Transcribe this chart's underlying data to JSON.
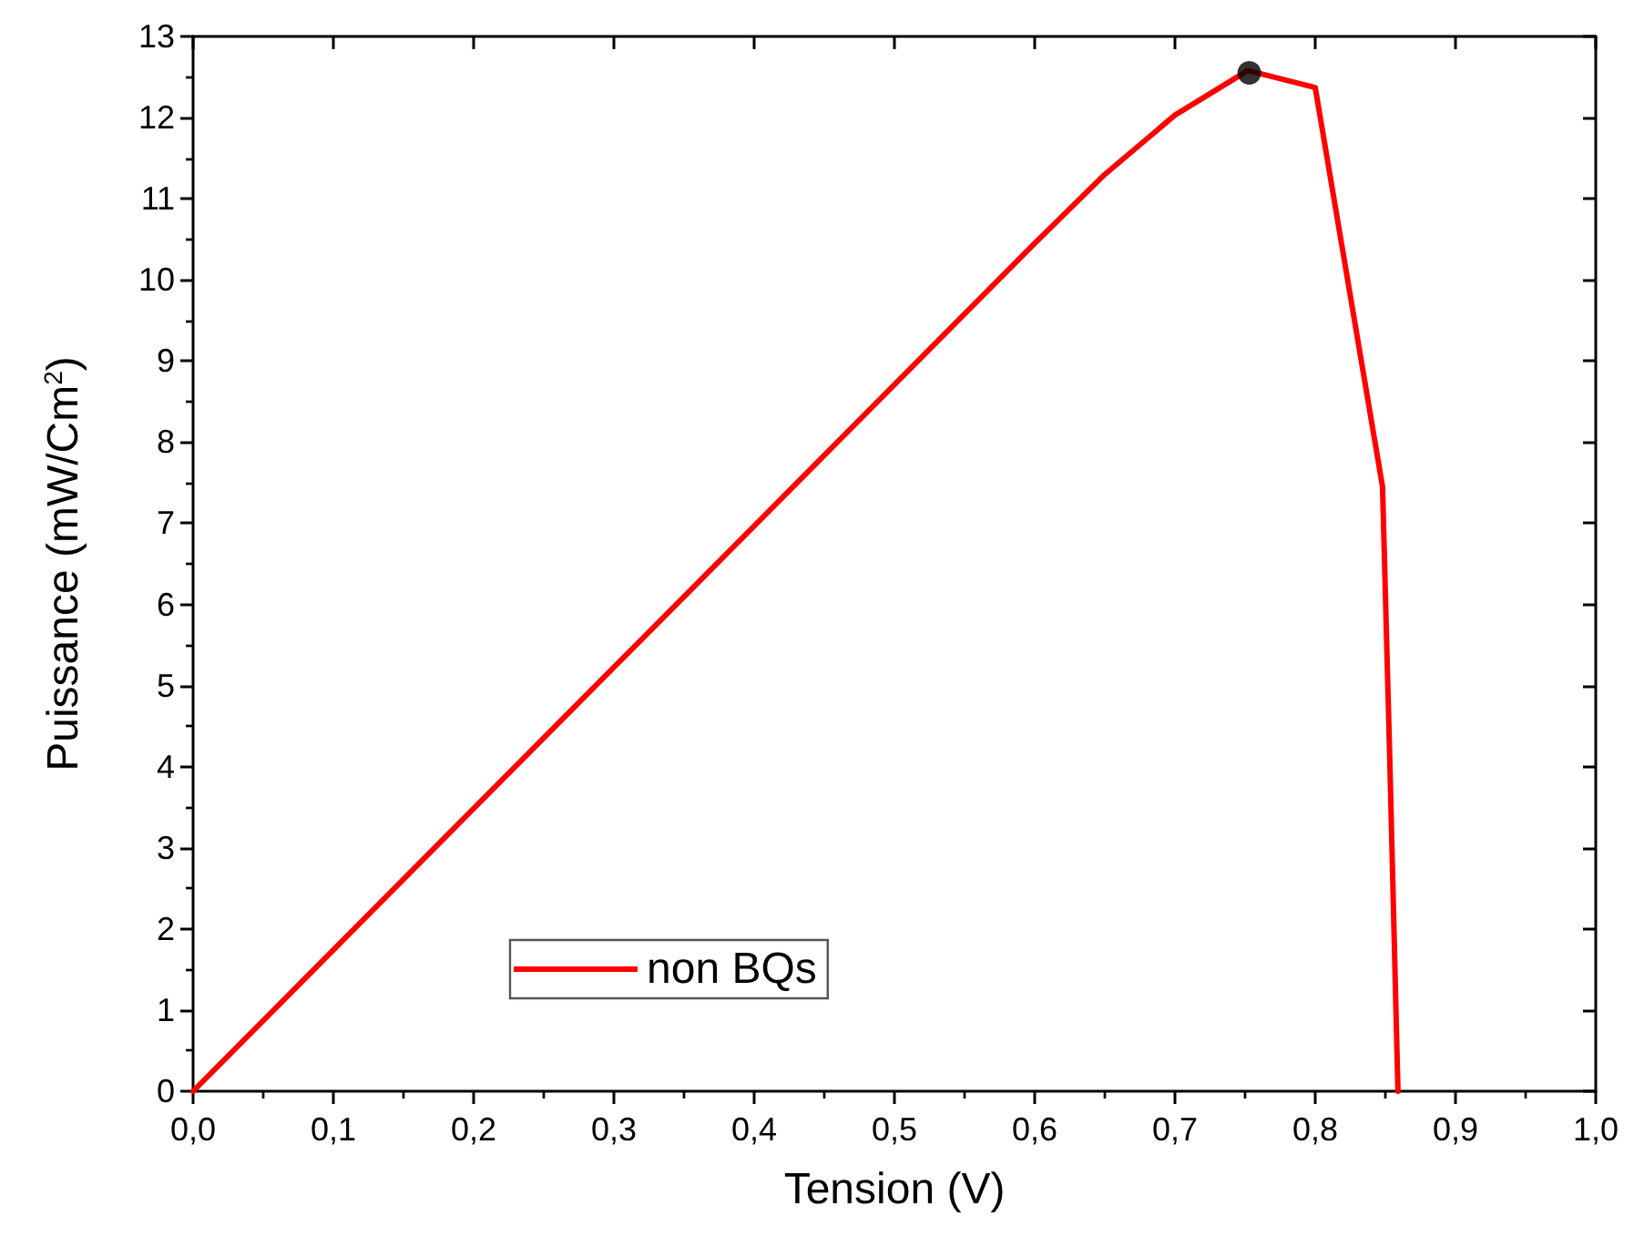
{
  "chart_data": {
    "type": "line",
    "xlabel": "Tension (V)",
    "ylabel": "Puissance (mW/Cm$^{2}$)",
    "xlim": [
      0,
      1
    ],
    "ylim": [
      0,
      13
    ],
    "xticks": [
      {
        "value": 0,
        "label": "0,0"
      },
      {
        "value": 0.1,
        "label": "0,1"
      },
      {
        "value": 0.2,
        "label": "0,2"
      },
      {
        "value": 0.3,
        "label": "0,3"
      },
      {
        "value": 0.4,
        "label": "0,4"
      },
      {
        "value": 0.5,
        "label": "0,5"
      },
      {
        "value": 0.6,
        "label": "0,6"
      },
      {
        "value": 0.7,
        "label": "0,7"
      },
      {
        "value": 0.8,
        "label": "0,8"
      },
      {
        "value": 0.9,
        "label": "0,9"
      },
      {
        "value": 1,
        "label": "1,0"
      }
    ],
    "yticks": [
      0,
      1,
      2,
      3,
      4,
      5,
      6,
      7,
      8,
      9,
      10,
      11,
      12,
      13
    ],
    "grid": false,
    "legend": "bottom left",
    "marker": "none",
    "line_style": "solid",
    "series": [
      {
        "name": "non BQs",
        "color": "#ff0000",
        "x": [
          0,
          0.6,
          0.65,
          0.7,
          0.752,
          0.8,
          0.848,
          0.853,
          0.859
        ],
        "values": [
          0,
          10.45,
          11.3,
          12.03,
          12.58,
          12.37,
          7.45,
          4.2,
          0
        ]
      },
      {
        "type": "scatter",
        "marker": "circle",
        "color": "#000000",
        "x": [
          0.753
        ],
        "values": [
          12.55
        ]
      }
    ]
  }
}
